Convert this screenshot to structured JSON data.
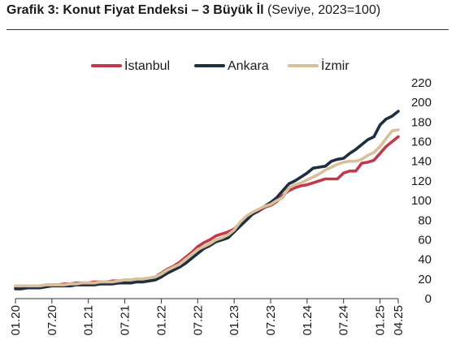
{
  "header": {
    "title_bold": "Grafik 3: Konut Fiyat Endeksi – 3 Büyük İl",
    "title_rest": " (Seviye, 2023=100)"
  },
  "chart_data": {
    "type": "line",
    "title": "Grafik 3: Konut Fiyat Endeksi – 3 Büyük İl (Seviye, 2023=100)",
    "xlabel": "",
    "ylabel": "",
    "ylim": [
      0,
      220
    ],
    "yticks": [
      0,
      20,
      40,
      60,
      80,
      100,
      120,
      140,
      160,
      180,
      200,
      220
    ],
    "y_axis_side": "right",
    "grid": false,
    "legend_position": "top",
    "xlim": [
      "01.20",
      "04.25"
    ],
    "xtick_labels": [
      "01.20",
      "07.20",
      "01.21",
      "07.21",
      "01.22",
      "07.22",
      "01.23",
      "07.23",
      "01.24",
      "07.24",
      "01.25",
      "04.25"
    ],
    "x": [
      "01.20",
      "02.20",
      "03.20",
      "04.20",
      "05.20",
      "06.20",
      "07.20",
      "08.20",
      "09.20",
      "10.20",
      "11.20",
      "12.20",
      "01.21",
      "02.21",
      "03.21",
      "04.21",
      "05.21",
      "06.21",
      "07.21",
      "08.21",
      "09.21",
      "10.21",
      "11.21",
      "12.21",
      "01.22",
      "02.22",
      "03.22",
      "04.22",
      "05.22",
      "06.22",
      "07.22",
      "08.22",
      "09.22",
      "10.22",
      "11.22",
      "12.22",
      "01.23",
      "02.23",
      "03.23",
      "04.23",
      "05.23",
      "06.23",
      "07.23",
      "08.23",
      "09.23",
      "10.23",
      "11.23",
      "12.23",
      "01.24",
      "02.24",
      "03.24",
      "04.24",
      "05.24",
      "06.24",
      "07.24",
      "08.24",
      "09.24",
      "10.24",
      "11.24",
      "12.24",
      "01.25",
      "02.25",
      "03.25",
      "04.25"
    ],
    "series": [
      {
        "name": "İstanbul",
        "color": "#c23a4a",
        "values": [
          12,
          12,
          12,
          13,
          13,
          14,
          14,
          14,
          15,
          15,
          16,
          16,
          16,
          17,
          17,
          17,
          18,
          18,
          19,
          19,
          20,
          20,
          21,
          22,
          26,
          30,
          33,
          37,
          42,
          47,
          53,
          57,
          60,
          64,
          66,
          68,
          71,
          77,
          82,
          86,
          89,
          93,
          95,
          99,
          105,
          110,
          113,
          115,
          116,
          118,
          120,
          122,
          122,
          122,
          128,
          130,
          130,
          138,
          139,
          141,
          148,
          155,
          160,
          165
        ]
      },
      {
        "name": "Ankara",
        "color": "#1e2f3f",
        "values": [
          10,
          10,
          11,
          11,
          11,
          12,
          13,
          13,
          13,
          13,
          14,
          14,
          14,
          14,
          15,
          15,
          15,
          16,
          16,
          16,
          17,
          17,
          18,
          19,
          22,
          26,
          29,
          32,
          36,
          41,
          46,
          51,
          54,
          58,
          60,
          62,
          68,
          74,
          80,
          86,
          90,
          94,
          98,
          103,
          110,
          117,
          120,
          124,
          128,
          133,
          134,
          135,
          140,
          142,
          143,
          148,
          152,
          157,
          162,
          165,
          177,
          183,
          186,
          191
        ]
      },
      {
        "name": "İzmir",
        "color": "#d8c09a",
        "values": [
          13,
          13,
          13,
          13,
          13,
          14,
          14,
          14,
          14,
          15,
          15,
          16,
          16,
          16,
          17,
          17,
          17,
          18,
          19,
          19,
          20,
          20,
          21,
          22,
          25,
          29,
          32,
          35,
          40,
          45,
          50,
          53,
          56,
          60,
          62,
          65,
          70,
          78,
          84,
          88,
          91,
          94,
          96,
          100,
          103,
          113,
          116,
          118,
          121,
          124,
          127,
          131,
          134,
          137,
          139,
          140,
          140,
          142,
          146,
          149,
          155,
          163,
          171,
          172
        ]
      }
    ]
  }
}
